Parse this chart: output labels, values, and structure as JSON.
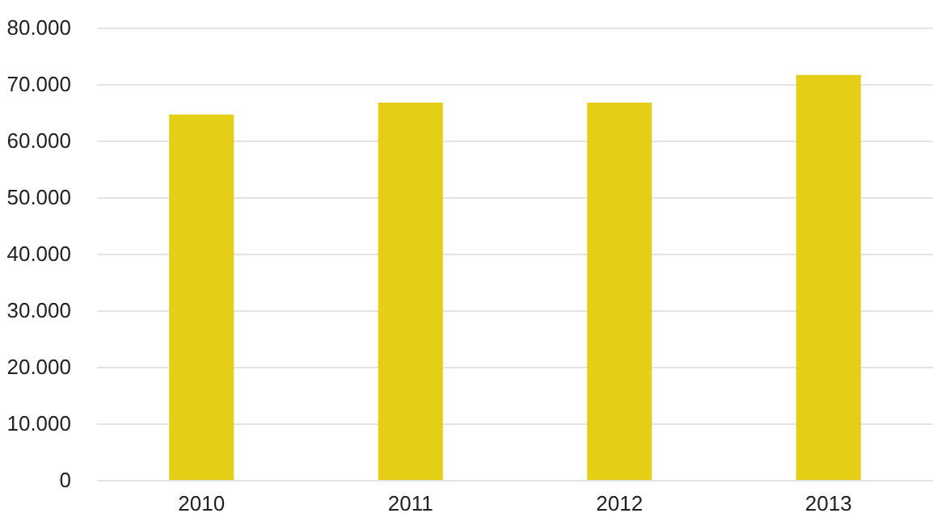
{
  "chart_data": {
    "type": "bar",
    "categories": [
      "2010",
      "2011",
      "2012",
      "2013"
    ],
    "values": [
      64600,
      66700,
      66700,
      71600
    ],
    "color": "#e4cf16",
    "ylim": [
      0,
      80000
    ],
    "yticks": [
      0,
      {
        "value": 10000,
        "label": "10.000"
      },
      {
        "value": 20000,
        "label": "20.000"
      },
      {
        "value": 30000,
        "label": "30.000"
      },
      {
        "value": 40000,
        "label": "40.000"
      },
      {
        "value": 50000,
        "label": "50.000"
      },
      {
        "value": 60000,
        "label": "60.000"
      },
      {
        "value": 70000,
        "label": "70.000"
      },
      {
        "value": 80000,
        "label": "80.000"
      }
    ],
    "grid": "y"
  }
}
